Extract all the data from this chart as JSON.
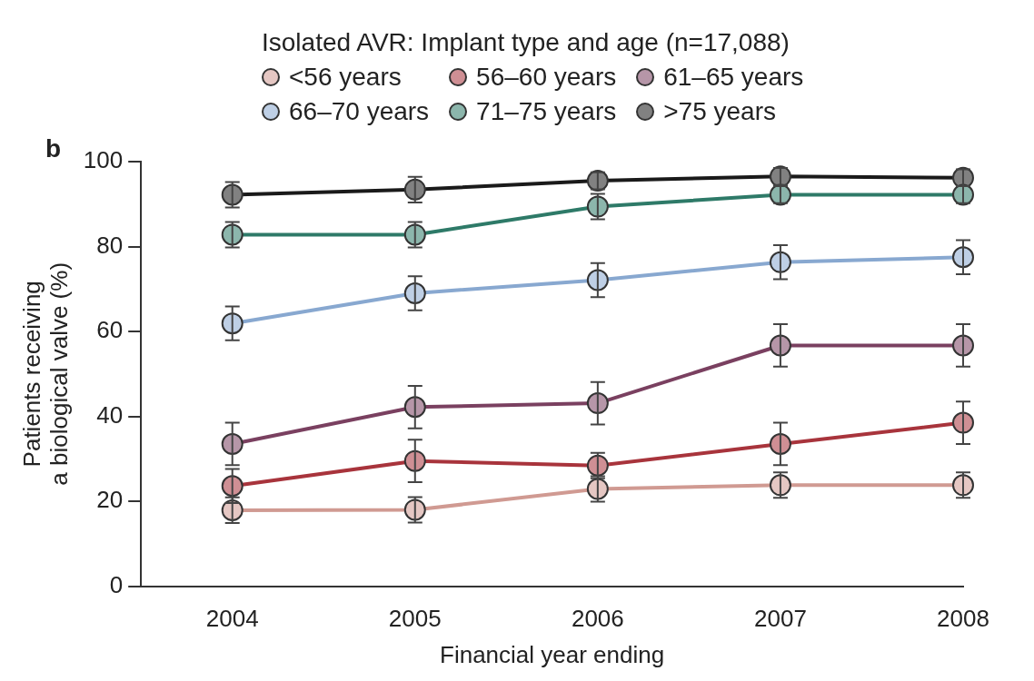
{
  "chart_data": {
    "type": "line",
    "legend_title": "Isolated AVR: Implant type and age (n=17,088)",
    "xlabel": "Financial year ending",
    "ylabel": "Patients receiving\na biological valve (%)",
    "annotations": [
      "b"
    ],
    "x": [
      2004,
      2005,
      2006,
      2007,
      2008
    ],
    "xlim": [
      2003.5,
      2008
    ],
    "xticks": [
      2004,
      2005,
      2006,
      2007,
      2008
    ],
    "ylim": [
      0,
      100
    ],
    "yticks": [
      0,
      20,
      40,
      60,
      80,
      100
    ],
    "series": [
      {
        "name": "<56 years",
        "color": "#d09a92",
        "values": [
          17.9,
          18,
          22.9,
          23.8,
          23.8
        ],
        "errors": [
          3,
          3,
          3,
          3,
          3
        ]
      },
      {
        "name": "56–60 years",
        "color": "#a8343c",
        "values": [
          23.6,
          29.5,
          28.4,
          33.5,
          38.5
        ],
        "errors": [
          4,
          5,
          3,
          5,
          5
        ]
      },
      {
        "name": "61–65 years",
        "color": "#7a4060",
        "values": [
          33.5,
          42.2,
          43.1,
          56.7,
          56.7
        ],
        "errors": [
          5,
          5,
          5,
          5,
          5
        ]
      },
      {
        "name": "66–70 years",
        "color": "#88a8d0",
        "values": [
          61.9,
          69,
          72.1,
          76.3,
          77.5
        ],
        "errors": [
          4,
          4,
          4,
          4,
          4
        ]
      },
      {
        "name": "71–75 years",
        "color": "#2e7a68",
        "values": [
          82.8,
          82.8,
          89.4,
          92.2,
          92.2
        ],
        "errors": [
          3,
          3,
          3,
          2,
          2
        ]
      },
      {
        "name": ">75 years",
        "color": "#1a1a1a",
        "values": [
          92.2,
          93.4,
          95.5,
          96.5,
          96.2
        ],
        "errors": [
          3,
          3,
          2,
          2,
          2
        ]
      }
    ],
    "legend": "top",
    "grid": false,
    "marker": "circle",
    "line_style": "solid"
  }
}
